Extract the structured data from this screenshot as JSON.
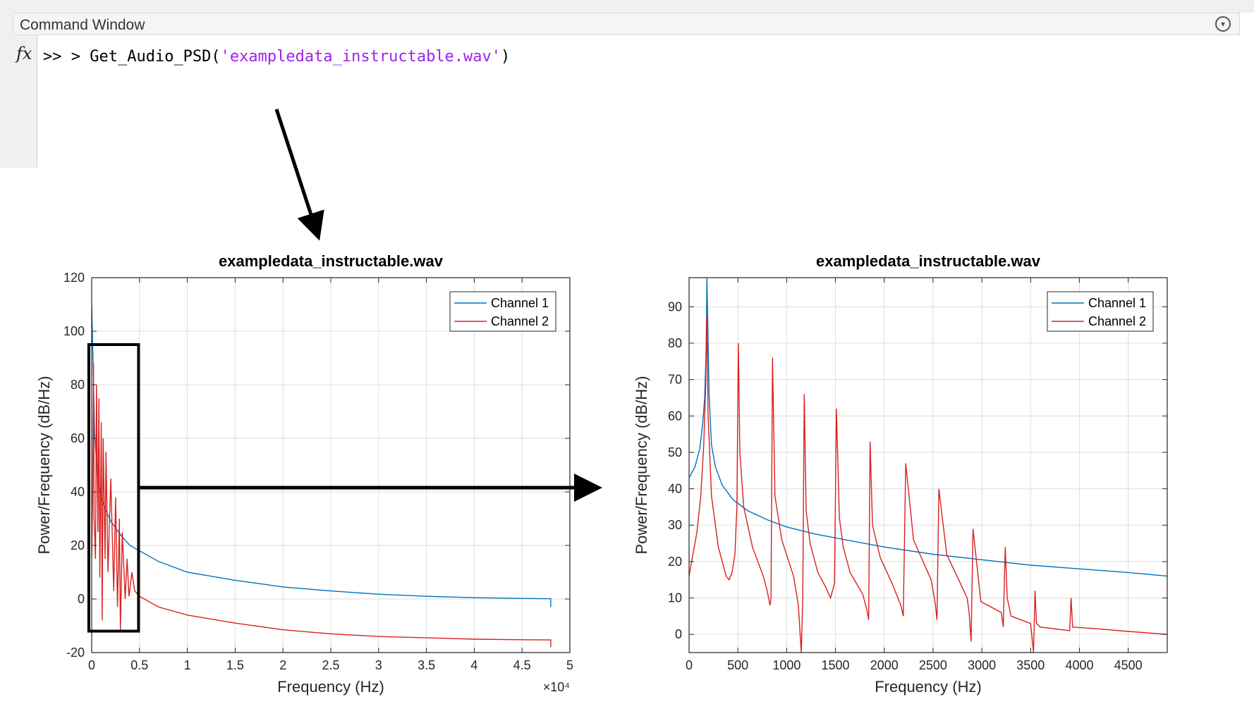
{
  "command_window": {
    "title": "Command Window",
    "prompt": ">> > ",
    "function_call": "Get_Audio_PSD(",
    "argument": "'exampledata_instructable.wav'",
    "close_paren": ")",
    "menu_icon": "chevron-down-circle-icon",
    "fx_label": "fx"
  },
  "chart_data": [
    {
      "type": "line",
      "title": "exampledata_instructable.wav",
      "xlabel": "Frequency (Hz)",
      "ylabel": "Power/Frequency (dB/Hz)",
      "xlim": [
        0,
        50000
      ],
      "ylim": [
        -20,
        120
      ],
      "xticks": [
        0,
        5000,
        10000,
        15000,
        20000,
        25000,
        30000,
        35000,
        40000,
        45000,
        50000
      ],
      "xtick_labels": [
        "0",
        "0.5",
        "1",
        "1.5",
        "2",
        "2.5",
        "3",
        "3.5",
        "4",
        "4.5",
        "5"
      ],
      "xtick_exponent": "×10⁴",
      "yticks": [
        -20,
        0,
        20,
        40,
        60,
        80,
        100,
        120
      ],
      "grid": true,
      "legend": "top-right",
      "series": [
        {
          "name": "Channel 1",
          "color": "#0072BD",
          "x": [
            0,
            150,
            300,
            600,
            1000,
            1500,
            2000,
            3000,
            4000,
            5000,
            7000,
            10000,
            15000,
            20000,
            25000,
            30000,
            35000,
            40000,
            45000,
            48000,
            48000
          ],
          "y": [
            110,
            88,
            62,
            46,
            38,
            33,
            29,
            24,
            20,
            18,
            14,
            10,
            7,
            4.5,
            3,
            1.8,
            1,
            0.5,
            0.2,
            0.1,
            -3
          ]
        },
        {
          "name": "Channel 2",
          "color": "#D92020",
          "x": [
            0,
            100,
            190,
            250,
            400,
            500,
            650,
            750,
            850,
            1000,
            1100,
            1200,
            1400,
            1500,
            1700,
            2000,
            2300,
            2500,
            2700,
            2900,
            3000,
            3200,
            3500,
            3700,
            3900,
            4200,
            4500,
            5000,
            7000,
            10000,
            15000,
            20000,
            25000,
            30000,
            35000,
            40000,
            45000,
            48000,
            48000
          ],
          "y": [
            15,
            40,
            88,
            30,
            15,
            80,
            25,
            75,
            8,
            66,
            -8,
            60,
            15,
            55,
            10,
            45,
            3,
            38,
            -3,
            30,
            -12,
            25,
            0,
            15,
            1,
            10,
            3,
            1,
            -3,
            -6,
            -9,
            -11.5,
            -13,
            -14,
            -14.5,
            -15,
            -15.2,
            -15.3,
            -18
          ]
        }
      ],
      "annotation": "zoom-region-box"
    },
    {
      "type": "line",
      "title": "exampledata_instructable.wav",
      "xlabel": "Frequency (Hz)",
      "ylabel": "Power/Frequency (dB/Hz)",
      "xlim": [
        0,
        4900
      ],
      "ylim": [
        -5,
        98
      ],
      "xticks": [
        0,
        500,
        1000,
        1500,
        2000,
        2500,
        3000,
        3500,
        4000,
        4500
      ],
      "yticks": [
        0,
        10,
        20,
        30,
        40,
        50,
        60,
        70,
        80,
        90
      ],
      "grid": true,
      "legend": "top-right",
      "series": [
        {
          "name": "Channel 1",
          "color": "#0072BD",
          "x": [
            0,
            60,
            110,
            140,
            160,
            175,
            183,
            190,
            205,
            230,
            270,
            340,
            450,
            600,
            800,
            1000,
            1300,
            1600,
            2000,
            2500,
            3000,
            3500,
            4000,
            4500,
            4900
          ],
          "y": [
            43,
            46,
            51,
            58,
            65,
            78,
            98,
            88,
            66,
            52,
            46,
            41,
            37,
            34,
            31.5,
            29.5,
            27.5,
            26,
            24,
            22,
            20.5,
            19,
            18,
            17,
            16
          ]
        },
        {
          "name": "Channel 2",
          "color": "#D92020",
          "x": [
            0,
            40,
            80,
            120,
            150,
            170,
            182,
            195,
            230,
            300,
            380,
            410,
            440,
            470,
            490,
            505,
            520,
            560,
            650,
            760,
            800,
            830,
            840,
            855,
            880,
            950,
            1070,
            1120,
            1150,
            1165,
            1180,
            1200,
            1240,
            1320,
            1400,
            1450,
            1490,
            1510,
            1540,
            1580,
            1650,
            1780,
            1820,
            1840,
            1855,
            1880,
            1960,
            2080,
            2170,
            2195,
            2220,
            2300,
            2480,
            2520,
            2540,
            2560,
            2640,
            2850,
            2870,
            2890,
            2910,
            2990,
            3200,
            3220,
            3240,
            3260,
            3300,
            3500,
            3530,
            3545,
            3560,
            3600,
            3900,
            3915,
            3930,
            4200,
            4500,
            4900
          ],
          "y": [
            16,
            22,
            28,
            38,
            52,
            68,
            87,
            60,
            38,
            24,
            16,
            15,
            17,
            22,
            35,
            80,
            50,
            35,
            24,
            16,
            12,
            8,
            10,
            76,
            38,
            26,
            16,
            8,
            -5,
            10,
            66,
            34,
            25,
            17,
            13,
            10,
            14,
            62,
            32,
            24,
            17,
            11,
            7,
            4,
            53,
            30,
            21,
            14,
            8,
            5,
            47,
            26,
            15,
            9,
            4,
            40,
            22,
            10,
            6,
            -2,
            29,
            9,
            6,
            2,
            24,
            10,
            5,
            3,
            -5,
            12,
            3,
            2,
            1,
            10,
            2,
            1.5,
            0.8,
            0
          ]
        }
      ]
    }
  ]
}
